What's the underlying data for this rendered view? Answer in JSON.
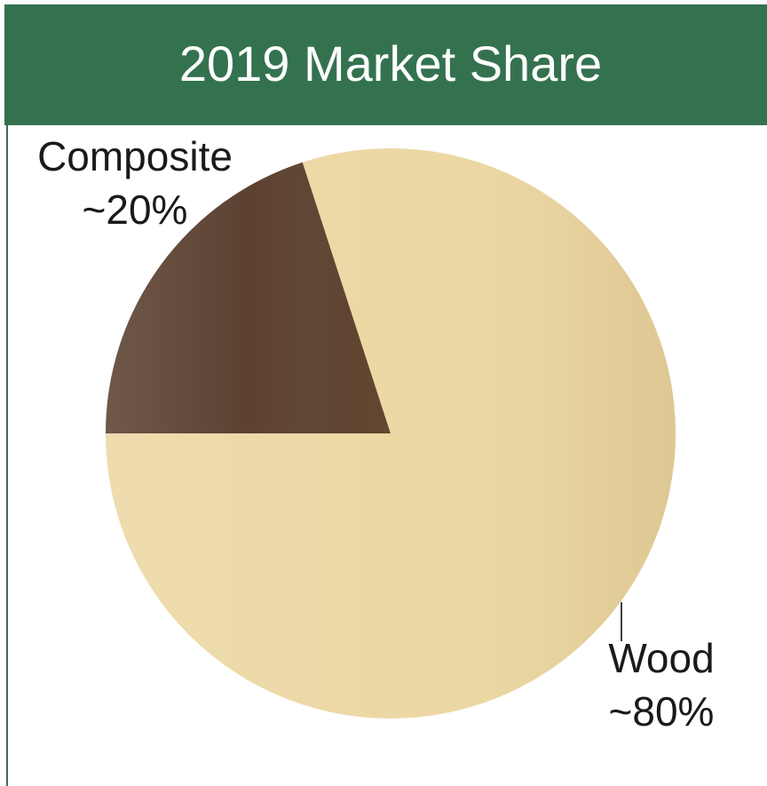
{
  "chart_data": {
    "type": "pie",
    "title": "2019 Market Share",
    "categories": [
      "Composite",
      "Wood"
    ],
    "values": [
      20,
      80
    ],
    "value_labels": [
      "~20%",
      "~80%"
    ],
    "colors": [
      "#5c4131",
      "#ecd8a4"
    ]
  }
}
